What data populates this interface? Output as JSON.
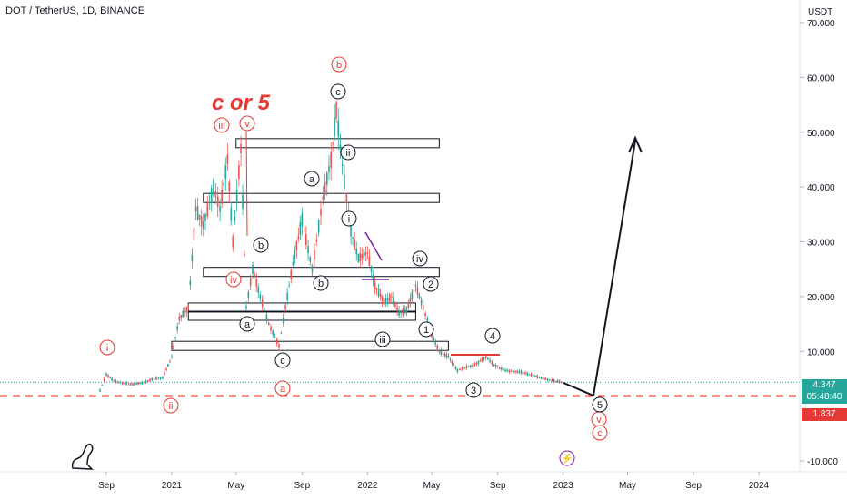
{
  "header": {
    "symbol_line": "DOT / TetherUS, 1D, BINANCE",
    "currency": "USDT"
  },
  "price_labels": {
    "last_price": "4.347",
    "countdown": "05:48:40",
    "support_price": "1.837"
  },
  "colors": {
    "candle_up": "#26a69a",
    "candle_down": "#ef5350",
    "support_line": "#e53935",
    "label_red": "#e53935",
    "label_black": "#131722",
    "last_price_box": "#26a69a",
    "support_box": "#e53935",
    "count_purple": "#7b1fa2"
  },
  "chart_data": {
    "type": "line",
    "title": "DOT / TetherUS, 1D, BINANCE",
    "ylabel": "USDT",
    "ylim": [
      -10,
      70
    ],
    "x_ticks": [
      "Sep",
      "2021",
      "May",
      "Sep",
      "2022",
      "May",
      "Sep",
      "2023",
      "May",
      "Sep",
      "2024"
    ],
    "y_ticks": [
      "-10.000",
      "10.000",
      "20.000",
      "30.000",
      "40.000",
      "50.000",
      "60.000",
      "70.000"
    ],
    "series": [
      {
        "values": [
          [
            "2020-08-20",
            2.9
          ],
          [
            "2020-09-01",
            5.8
          ],
          [
            "2020-09-15",
            4.6
          ],
          [
            "2020-10-01",
            4.2
          ],
          [
            "2020-10-20",
            4.0
          ],
          [
            "2020-11-10",
            4.3
          ],
          [
            "2020-11-25",
            4.9
          ],
          [
            "2020-12-15",
            5.2
          ],
          [
            "2021-01-01",
            9.0
          ],
          [
            "2021-01-15",
            16.0
          ],
          [
            "2021-02-01",
            18.0
          ],
          [
            "2021-02-15",
            36.0
          ],
          [
            "2021-03-01",
            33.0
          ],
          [
            "2021-03-20",
            40.0
          ],
          [
            "2021-04-01",
            36.0
          ],
          [
            "2021-04-15",
            45.0
          ],
          [
            "2021-04-25",
            30.0
          ],
          [
            "2021-05-10",
            47.0
          ],
          [
            "2021-05-20",
            18.0
          ],
          [
            "2021-06-01",
            25.0
          ],
          [
            "2021-06-15",
            20.0
          ],
          [
            "2021-07-01",
            15.0
          ],
          [
            "2021-07-20",
            11.0
          ],
          [
            "2021-08-01",
            18.0
          ],
          [
            "2021-08-15",
            26.0
          ],
          [
            "2021-09-01",
            34.0
          ],
          [
            "2021-09-20",
            25.0
          ],
          [
            "2021-10-10",
            38.0
          ],
          [
            "2021-10-25",
            45.0
          ],
          [
            "2021-11-04",
            54.0
          ],
          [
            "2021-11-15",
            44.0
          ],
          [
            "2021-12-01",
            32.0
          ],
          [
            "2021-12-15",
            27.0
          ],
          [
            "2022-01-01",
            28.0
          ],
          [
            "2022-01-15",
            22.0
          ],
          [
            "2022-02-01",
            19.0
          ],
          [
            "2022-02-15",
            20.0
          ],
          [
            "2022-03-01",
            17.0
          ],
          [
            "2022-03-15",
            17.5
          ],
          [
            "2022-04-01",
            22.0
          ],
          [
            "2022-04-15",
            18.0
          ],
          [
            "2022-05-01",
            13.0
          ],
          [
            "2022-05-15",
            10.0
          ],
          [
            "2022-06-01",
            9.0
          ],
          [
            "2022-06-18",
            6.5
          ],
          [
            "2022-07-01",
            7.0
          ],
          [
            "2022-07-20",
            7.5
          ],
          [
            "2022-08-10",
            9.0
          ],
          [
            "2022-08-25",
            7.5
          ],
          [
            "2022-09-15",
            6.5
          ],
          [
            "2022-10-15",
            6.2
          ],
          [
            "2022-11-10",
            5.5
          ],
          [
            "2022-11-25",
            5.0
          ],
          [
            "2022-12-15",
            4.6
          ],
          [
            "2023-01-01",
            4.347
          ]
        ]
      }
    ]
  },
  "annotations": {
    "big_note": "c or 5",
    "red_wave_labels": [
      "i",
      "ii",
      "iii",
      "v",
      "iv",
      "a",
      "b",
      "v",
      "c"
    ],
    "black_wave_labels": [
      "c",
      "b",
      "a",
      "c",
      "a",
      "b",
      "ii",
      "i",
      "iv",
      "iii",
      "2",
      "1",
      "4",
      "3",
      "5"
    ],
    "purple_count": "⚡"
  }
}
